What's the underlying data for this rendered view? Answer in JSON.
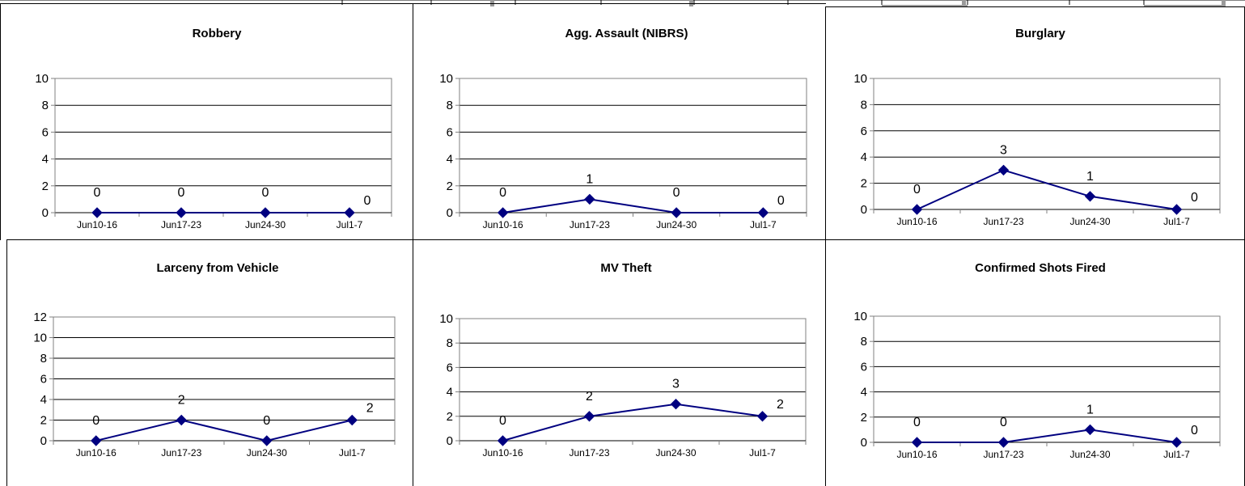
{
  "chart_data": [
    {
      "type": "line",
      "title": "Robbery",
      "categories": [
        "Jun10-16",
        "Jun17-23",
        "Jun24-30",
        "Jul1-7"
      ],
      "values": [
        0,
        0,
        0,
        0
      ],
      "ylim": [
        0,
        10
      ],
      "yticks": [
        "0",
        "2",
        "4",
        "6",
        "8",
        "10"
      ],
      "data_labels": [
        "0",
        "0",
        "0",
        "0"
      ],
      "grid": true,
      "legend": "none",
      "color": "#000080"
    },
    {
      "type": "line",
      "title": "Agg. Assault (NIBRS)",
      "categories": [
        "Jun10-16",
        "Jun17-23",
        "Jun24-30",
        "Jul1-7"
      ],
      "values": [
        0,
        1,
        0,
        0
      ],
      "ylim": [
        0,
        10
      ],
      "yticks": [
        "0",
        "2",
        "4",
        "6",
        "8",
        "10"
      ],
      "data_labels": [
        "0",
        "1",
        "0",
        "0"
      ],
      "grid": true,
      "legend": "none",
      "color": "#000080"
    },
    {
      "type": "line",
      "title": "Burglary",
      "categories": [
        "Jun10-16",
        "Jun17-23",
        "Jun24-30",
        "Jul1-7"
      ],
      "values": [
        0,
        3,
        1,
        0
      ],
      "ylim": [
        0,
        10
      ],
      "yticks": [
        "0",
        "2",
        "4",
        "6",
        "8",
        "10"
      ],
      "data_labels": [
        "0",
        "3",
        "1",
        "0"
      ],
      "grid": true,
      "legend": "none",
      "color": "#000080"
    },
    {
      "type": "line",
      "title": "Larceny from Vehicle",
      "categories": [
        "Jun10-16",
        "Jun17-23",
        "Jun24-30",
        "Jul1-7"
      ],
      "values": [
        0,
        2,
        0,
        2
      ],
      "ylim": [
        0,
        12
      ],
      "yticks": [
        "0",
        "2",
        "4",
        "6",
        "8",
        "10",
        "12"
      ],
      "data_labels": [
        "0",
        "2",
        "0",
        "2"
      ],
      "grid": true,
      "legend": "none",
      "color": "#000080"
    },
    {
      "type": "line",
      "title": "MV Theft",
      "categories": [
        "Jun10-16",
        "Jun17-23",
        "Jun24-30",
        "Jul1-7"
      ],
      "values": [
        0,
        2,
        3,
        2
      ],
      "ylim": [
        0,
        10
      ],
      "yticks": [
        "0",
        "2",
        "4",
        "6",
        "8",
        "10"
      ],
      "data_labels": [
        "0",
        "2",
        "3",
        "2"
      ],
      "grid": true,
      "legend": "none",
      "color": "#000080"
    },
    {
      "type": "line",
      "title": "Confirmed Shots Fired",
      "categories": [
        "Jun10-16",
        "Jun17-23",
        "Jun24-30",
        "Jul1-7"
      ],
      "values": [
        0,
        0,
        1,
        0
      ],
      "ylim": [
        0,
        10
      ],
      "yticks": [
        "0",
        "2",
        "4",
        "6",
        "8",
        "10"
      ],
      "data_labels": [
        "0",
        "0",
        "1",
        "0"
      ],
      "grid": true,
      "legend": "none",
      "color": "#000080"
    }
  ]
}
